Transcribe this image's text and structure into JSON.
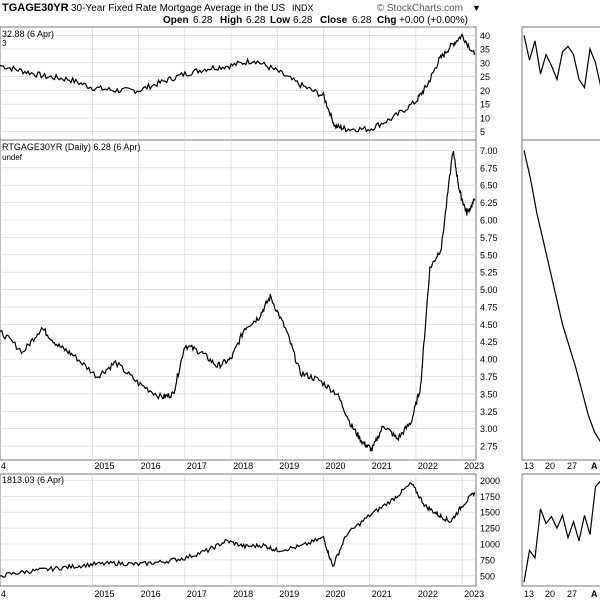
{
  "header": {
    "symbol": "TGAGE30YR",
    "description": "30-Year Fixed Rate Mortgage Average in the US",
    "exchange": "INDX",
    "open_label": "Open",
    "open": "6.28",
    "high_label": "High",
    "high": "6.28",
    "low_label": "Low",
    "low": "6.28",
    "close_label": "Close",
    "close": "6.28",
    "chg_label": "Chg",
    "chg": "+0.00 (+0.00%)",
    "brand": "© StockCharts.com",
    "arrow": "▼"
  },
  "colors": {
    "background": "#ffffff",
    "line": "#000000",
    "grid": "#d0d0d0",
    "frame": "#777777",
    "text": "#000000",
    "brand": "#5a5a5a"
  },
  "chart_data": [
    {
      "type": "line",
      "panel": "top-indicator",
      "label": "32.88 (6 Apr)",
      "sub_label": "3",
      "ylim": [
        2,
        43
      ],
      "yticks": [
        "5",
        "10",
        "15",
        "20",
        "25",
        "30",
        "35",
        "40"
      ],
      "x": [
        2013.0,
        2013.5,
        2014.0,
        2014.5,
        2015.0,
        2015.5,
        2016.0,
        2016.5,
        2017.0,
        2017.5,
        2018.0,
        2018.5,
        2019.0,
        2019.5,
        2020.0,
        2020.25,
        2020.5,
        2021.0,
        2021.5,
        2022.0,
        2022.25,
        2022.5,
        2022.75,
        2023.0,
        2023.27
      ],
      "values": [
        29,
        27,
        25,
        24,
        21,
        20,
        20,
        23,
        26,
        28,
        29,
        31,
        27,
        22,
        18,
        7,
        6,
        6,
        10,
        16,
        22,
        31,
        36,
        40,
        32.88
      ]
    },
    {
      "type": "line",
      "panel": "main",
      "label": "RTGAGE30YR (Daily) 6.28 (6 Apr)",
      "sub_label": "undef",
      "ylim": [
        2.55,
        7.15
      ],
      "yticks": [
        "2.75",
        "3.00",
        "3.25",
        "3.50",
        "3.75",
        "4.00",
        "4.25",
        "4.50",
        "4.75",
        "5.00",
        "5.25",
        "5.50",
        "5.75",
        "6.00",
        "6.25",
        "6.50",
        "6.75",
        "7.00"
      ],
      "xticks": [
        "4",
        "2015",
        "2016",
        "2017",
        "2018",
        "2019",
        "2020",
        "2021",
        "2022",
        "2023"
      ],
      "x": [
        2013.0,
        2013.5,
        2013.9,
        2014.25,
        2014.6,
        2015.1,
        2015.5,
        2016.0,
        2016.5,
        2016.75,
        2017.0,
        2017.35,
        2017.7,
        2018.0,
        2018.3,
        2018.6,
        2018.85,
        2019.2,
        2019.5,
        2019.9,
        2020.3,
        2020.6,
        2020.85,
        2021.05,
        2021.3,
        2021.6,
        2021.9,
        2022.1,
        2022.3,
        2022.55,
        2022.8,
        2022.95,
        2023.1,
        2023.27
      ],
      "values": [
        4.4,
        4.1,
        4.45,
        4.2,
        4.05,
        3.75,
        3.95,
        3.65,
        3.45,
        3.5,
        4.2,
        4.1,
        3.9,
        4.0,
        4.45,
        4.6,
        4.9,
        4.4,
        3.8,
        3.7,
        3.5,
        3.05,
        2.8,
        2.7,
        3.05,
        2.85,
        3.1,
        3.6,
        5.3,
        5.6,
        7.0,
        6.4,
        6.1,
        6.28
      ]
    },
    {
      "type": "line",
      "panel": "bottom-comparison",
      "label": "1813.03 (6 Apr)",
      "ylim": [
        340,
        2100
      ],
      "yticks": [
        "500",
        "750",
        "1000",
        "1250",
        "1500",
        "1750",
        "2000"
      ],
      "xticks": [
        "4",
        "2015",
        "2016",
        "2017",
        "2018",
        "2019",
        "2020",
        "2021",
        "2022",
        "2023"
      ],
      "x": [
        2013.0,
        2013.5,
        2014.0,
        2014.5,
        2015.0,
        2015.5,
        2016.0,
        2016.5,
        2017.0,
        2017.5,
        2017.9,
        2018.3,
        2018.7,
        2019.0,
        2019.5,
        2020.0,
        2020.2,
        2020.5,
        2021.0,
        2021.5,
        2021.9,
        2022.2,
        2022.5,
        2022.75,
        2023.0,
        2023.27
      ],
      "values": [
        500,
        560,
        600,
        640,
        680,
        700,
        680,
        720,
        780,
        900,
        1050,
        960,
        980,
        900,
        960,
        1100,
        650,
        1150,
        1450,
        1700,
        1950,
        1600,
        1450,
        1350,
        1600,
        1813
      ]
    },
    {
      "type": "line",
      "panel": "right-top-zoom",
      "values": [
        40,
        31,
        38,
        26,
        33,
        29,
        24,
        34,
        36,
        33,
        24,
        21,
        35,
        30,
        21
      ]
    },
    {
      "type": "line",
      "panel": "right-main-zoom",
      "xticks": [
        "13",
        "20",
        "27",
        "A"
      ],
      "values": [
        7.0,
        6.6,
        6.1,
        5.7,
        5.3,
        4.9,
        4.5,
        4.2,
        3.9,
        3.55,
        3.2,
        2.95,
        2.8
      ]
    },
    {
      "type": "line",
      "panel": "right-bottom-zoom",
      "xticks": [
        "13",
        "20",
        "27",
        "A"
      ],
      "values": [
        400,
        900,
        780,
        1550,
        1320,
        1430,
        1250,
        1450,
        1100,
        1350,
        1050,
        1450,
        1150,
        1900,
        2000
      ]
    }
  ]
}
